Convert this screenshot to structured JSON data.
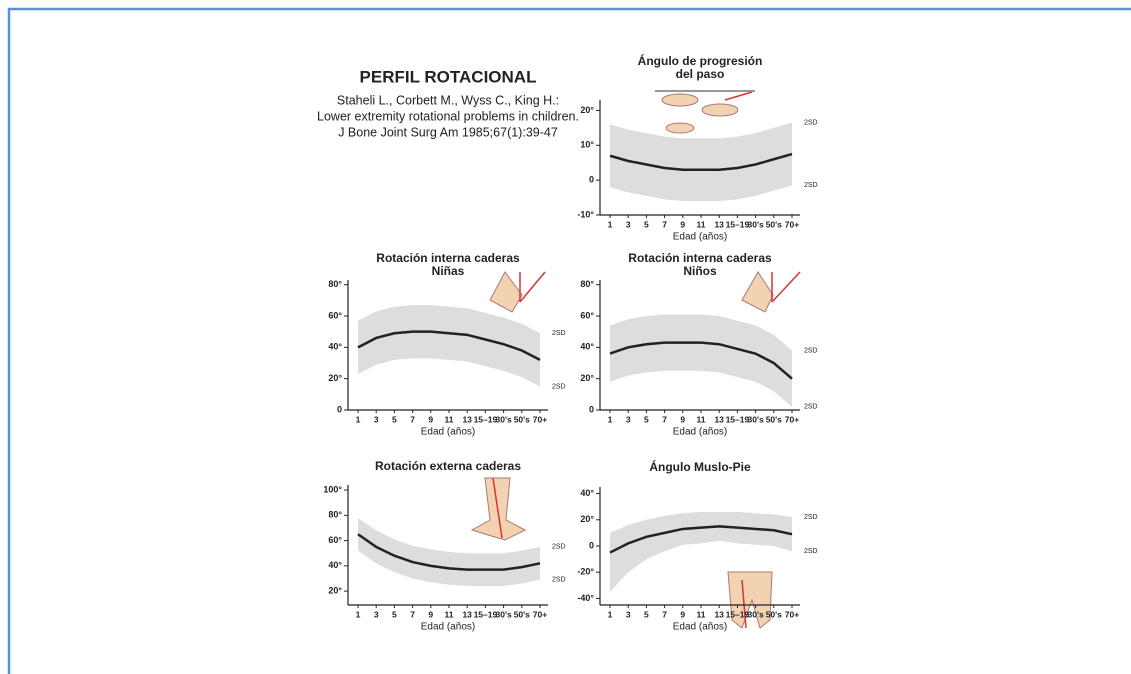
{
  "header": {
    "title": "PERFIL ROTACIONAL",
    "citation": [
      "Staheli L., Corbett M., Wyss C., King H.:",
      "Lower extremity rotational problems in children.",
      "J Bone Joint Surg Am 1985;67(1):39-47"
    ]
  },
  "chart_data": [
    {
      "type": "line",
      "title": [
        "Ángulo de progresión",
        "del paso"
      ],
      "x_label": "Edad (años)",
      "categories": [
        "1",
        "3",
        "5",
        "7",
        "9",
        "11",
        "13",
        "15–19",
        "30's",
        "50's",
        "70+"
      ],
      "values": [
        7,
        5.5,
        4.5,
        3.5,
        3,
        3,
        3,
        3.5,
        4.5,
        6,
        7.5
      ],
      "color": "#222222",
      "band": {
        "upper": [
          16,
          14.5,
          13.5,
          12.5,
          12,
          12,
          12,
          12.5,
          13.5,
          15,
          16.5
        ],
        "lower": [
          -2,
          -3.5,
          -4.5,
          -5.5,
          -6,
          -6,
          -6,
          -5.5,
          -4.5,
          -3,
          -1.5
        ],
        "color": "#d4d4d4"
      },
      "sd_labels": [
        "2SD",
        "2SD"
      ],
      "ylim": [
        -10,
        23
      ],
      "yticks": [
        {
          "value": 20,
          "label": "20°"
        },
        {
          "value": 10,
          "label": "10°"
        },
        0,
        {
          "value": -10,
          "label": "-10°"
        }
      ]
    },
    {
      "type": "line",
      "title": [
        "Rotación interna caderas",
        "Niñas"
      ],
      "x_label": "Edad (años)",
      "categories": [
        "1",
        "3",
        "5",
        "7",
        "9",
        "11",
        "13",
        "15–19",
        "30's",
        "50's",
        "70+"
      ],
      "values": [
        40,
        46,
        49,
        50,
        50,
        49,
        48,
        45,
        42,
        38,
        32
      ],
      "color": "#222222",
      "band": {
        "upper": [
          57,
          63,
          66,
          67,
          67,
          66,
          65,
          62,
          59,
          55,
          49
        ],
        "lower": [
          23,
          29,
          32,
          33,
          33,
          32,
          31,
          28,
          25,
          21,
          15
        ],
        "color": "#d4d4d4"
      },
      "sd_labels": [
        "2SD",
        "2SD"
      ],
      "ylim": [
        0,
        83
      ],
      "yticks": [
        {
          "value": 80,
          "label": "80°"
        },
        {
          "value": 60,
          "label": "60°"
        },
        {
          "value": 40,
          "label": "40°"
        },
        {
          "value": 20,
          "label": "20°"
        },
        0
      ]
    },
    {
      "type": "line",
      "title": [
        "Rotación interna caderas",
        "Niños"
      ],
      "x_label": "Edad (años)",
      "categories": [
        "1",
        "3",
        "5",
        "7",
        "9",
        "11",
        "13",
        "15–19",
        "30's",
        "50's",
        "70+"
      ],
      "values": [
        36,
        40,
        42,
        43,
        43,
        43,
        42,
        39,
        36,
        30,
        20
      ],
      "color": "#222222",
      "band": {
        "upper": [
          54,
          58,
          60,
          61,
          61,
          61,
          60,
          57,
          54,
          48,
          38
        ],
        "lower": [
          18,
          22,
          24,
          25,
          25,
          25,
          24,
          21,
          18,
          12,
          2
        ],
        "color": "#d4d4d4"
      },
      "sd_labels": [
        "2SD",
        "2SD"
      ],
      "ylim": [
        0,
        83
      ],
      "yticks": [
        {
          "value": 80,
          "label": "80°"
        },
        {
          "value": 60,
          "label": "60°"
        },
        {
          "value": 40,
          "label": "40°"
        },
        {
          "value": 20,
          "label": "20°"
        },
        0
      ]
    },
    {
      "type": "line",
      "title": [
        "Rotación externa caderas"
      ],
      "x_label": "Edad (años)",
      "categories": [
        "1",
        "3",
        "5",
        "7",
        "9",
        "11",
        "13",
        "15–19",
        "30's",
        "50's",
        "70+"
      ],
      "values": [
        65,
        55,
        48,
        43,
        40,
        38,
        37,
        37,
        37,
        39,
        42
      ],
      "color": "#222222",
      "band": {
        "upper": [
          78,
          68,
          61,
          56,
          53,
          51,
          50,
          50,
          50,
          52,
          55
        ],
        "lower": [
          52,
          42,
          35,
          30,
          27,
          25,
          24,
          24,
          24,
          26,
          29
        ],
        "color": "#d4d4d4"
      },
      "sd_labels": [
        "2SD",
        "2SD"
      ],
      "ylim": [
        9,
        104
      ],
      "yticks": [
        {
          "value": 100,
          "label": "100°"
        },
        {
          "value": 80,
          "label": "80°"
        },
        {
          "value": 60,
          "label": "60°"
        },
        {
          "value": 40,
          "label": "40°"
        },
        {
          "value": 20,
          "label": "20°"
        }
      ]
    },
    {
      "type": "line",
      "title": [
        "Ángulo Muslo-Pie"
      ],
      "x_label": "Edad (años)",
      "categories": [
        "1",
        "3",
        "5",
        "7",
        "9",
        "11",
        "13",
        "15–19",
        "30's",
        "50's",
        "70+"
      ],
      "values": [
        -5,
        2,
        7,
        10,
        13,
        14,
        15,
        14,
        13,
        12,
        9
      ],
      "color": "#222222",
      "band": {
        "upper": [
          10,
          16,
          20,
          23,
          25,
          26,
          26,
          26,
          25,
          24,
          22
        ],
        "lower": [
          -35,
          -20,
          -10,
          -4,
          1,
          2,
          4,
          2,
          1,
          0,
          -4
        ],
        "color": "#d4d4d4"
      },
      "sd_labels": [
        "2SD",
        "2SD"
      ],
      "ylim": [
        -45,
        45
      ],
      "yticks": [
        {
          "value": 40,
          "label": "40°"
        },
        {
          "value": 20,
          "label": "20°"
        },
        0,
        {
          "value": -20,
          "label": "-20°"
        },
        {
          "value": -40,
          "label": "-40°"
        }
      ]
    }
  ]
}
